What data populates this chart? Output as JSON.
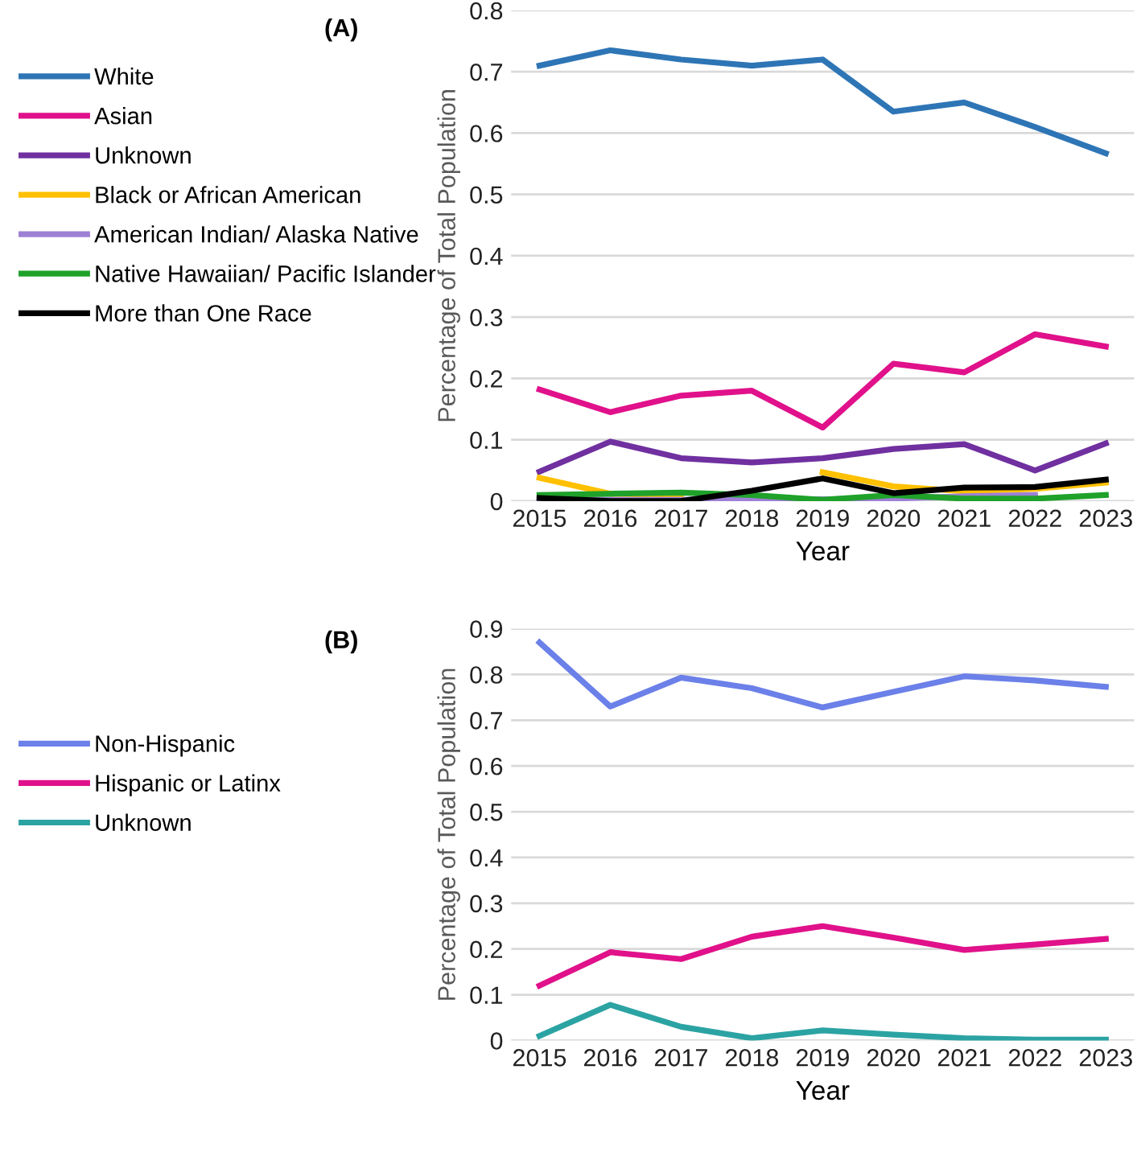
{
  "chart_data": [
    {
      "type": "line",
      "title": "(A)",
      "xlabel": "Year",
      "ylabel": "Percentage of Total Population",
      "categories": [
        "2015",
        "2016",
        "2017",
        "2018",
        "2019",
        "2020",
        "2021",
        "2022",
        "2023"
      ],
      "series": [
        {
          "name": "White",
          "color": "#2e75b6",
          "values": [
            0.71,
            0.735,
            0.72,
            0.71,
            0.72,
            0.635,
            0.65,
            0.61,
            0.567
          ]
        },
        {
          "name": "Asian",
          "color": "#e0118a",
          "values": [
            0.182,
            0.145,
            0.172,
            0.18,
            0.12,
            0.224,
            0.21,
            0.272,
            0.252
          ]
        },
        {
          "name": "Unknown",
          "color": "#7030a0",
          "values": [
            0.048,
            0.097,
            0.07,
            0.063,
            0.07,
            0.085,
            0.093,
            0.05,
            0.094
          ]
        },
        {
          "name": "Black or African American",
          "color": "#ffc000",
          "values": [
            0.038,
            0.012,
            0.01,
            null,
            0.047,
            0.024,
            0.016,
            0.02,
            0.03
          ]
        },
        {
          "name": "American Indian/ Alaska Native",
          "color": "#9e7fd6",
          "values": [
            0.003,
            0.002,
            0.002,
            0.003,
            0.003,
            0.004,
            0.008,
            0.01,
            null
          ]
        },
        {
          "name": "Native Hawaiian/ Pacific Islander",
          "color": "#1fa12a",
          "values": [
            0.01,
            0.012,
            0.014,
            0.01,
            0.002,
            0.01,
            0.004,
            0.004,
            0.01
          ]
        },
        {
          "name": "More than One Race",
          "color": "#000000",
          "values": [
            0.005,
            0.0,
            0.0,
            0.017,
            0.037,
            0.013,
            0.022,
            0.023,
            0.035
          ]
        }
      ],
      "ylim": [
        0,
        0.8
      ],
      "yticks": [
        0,
        0.1,
        0.2,
        0.3,
        0.4,
        0.5,
        0.6,
        0.7,
        0.8
      ],
      "grid": "y",
      "legend": "left"
    },
    {
      "type": "line",
      "title": "(B)",
      "xlabel": "Year",
      "ylabel": "Percentage of Total Population",
      "categories": [
        "2015",
        "2016",
        "2017",
        "2018",
        "2019",
        "2020",
        "2021",
        "2022",
        "2023"
      ],
      "series": [
        {
          "name": "Non-Hispanic",
          "color": "#6b80e8",
          "values": [
            0.87,
            0.73,
            0.793,
            0.77,
            0.728,
            0.762,
            0.796,
            0.787,
            0.773
          ]
        },
        {
          "name": "Hispanic or Latinx",
          "color": "#e0118a",
          "values": [
            0.12,
            0.193,
            0.178,
            0.227,
            0.25,
            0.225,
            0.198,
            0.21,
            0.222
          ]
        },
        {
          "name": "Unknown",
          "color": "#2ca3a3",
          "values": [
            0.01,
            0.078,
            0.03,
            0.005,
            0.022,
            0.013,
            0.005,
            0.002,
            0.002
          ]
        }
      ],
      "ylim": [
        0,
        0.9
      ],
      "yticks": [
        0,
        0.1,
        0.2,
        0.3,
        0.4,
        0.5,
        0.6,
        0.7,
        0.8,
        0.9
      ],
      "grid": "y",
      "legend": "left"
    }
  ]
}
